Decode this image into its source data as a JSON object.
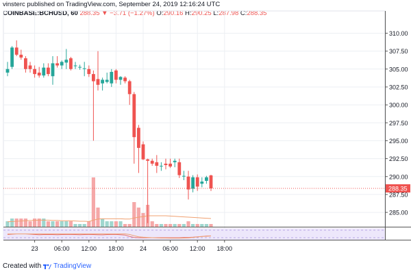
{
  "header": {
    "author": "vinsterc",
    "published_text": "published on TradingView.com, September 24, 2019 12:16:24 UTC",
    "symbol": "COINBASE:BCHUSD, 60",
    "last": "288.35",
    "change": "▼ −3.71 (−1.27%)",
    "ohlc": {
      "o_label": "O:",
      "o": "290.16",
      "h_label": "H:",
      "h": "290.25",
      "l_label": "L:",
      "l": "287.98",
      "c_label": "C:",
      "c": "288.35"
    }
  },
  "footer": {
    "created_with": "Created with",
    "brand": "TradingView"
  },
  "colors": {
    "up": "#26a69a",
    "down": "#ef5350",
    "vol_up": "#9fd6ce",
    "vol_down": "#f5a8a8",
    "price_line": "#ef5350",
    "osc_bg": "#ede7fb"
  },
  "chart_data": {
    "type": "candlestick",
    "interval": "60",
    "ylim": [
      283,
      311
    ],
    "y_ticks": [
      "310.00",
      "307.50",
      "305.00",
      "302.50",
      "300.00",
      "297.50",
      "295.00",
      "292.50",
      "290.00",
      "287.50",
      "285.00"
    ],
    "x_ticks": [
      {
        "label": "23",
        "bar": 6
      },
      {
        "label": "06:00",
        "bar": 12
      },
      {
        "label": "12:00",
        "bar": 18
      },
      {
        "label": "18:00",
        "bar": 24
      },
      {
        "label": "24",
        "bar": 30
      },
      {
        "label": "06:00",
        "bar": 36
      },
      {
        "label": "12:00",
        "bar": 42
      },
      {
        "label": "18:00",
        "bar": 48
      }
    ],
    "last_price_label": "288.35",
    "last_price": 288.35,
    "candles": [
      {
        "o": 304.5,
        "h": 306.0,
        "l": 304.0,
        "c": 305.0,
        "v": 2
      },
      {
        "o": 305.3,
        "h": 308.2,
        "l": 305.0,
        "c": 308.0,
        "v": 3
      },
      {
        "o": 308.0,
        "h": 309.0,
        "l": 306.8,
        "c": 307.0,
        "v": 3
      },
      {
        "o": 307.0,
        "h": 307.7,
        "l": 306.3,
        "c": 306.6,
        "v": 3
      },
      {
        "o": 306.5,
        "h": 306.8,
        "l": 304.5,
        "c": 305.0,
        "v": 3
      },
      {
        "o": 305.5,
        "h": 306.0,
        "l": 304.5,
        "c": 305.0,
        "v": 2
      },
      {
        "o": 305.0,
        "h": 305.5,
        "l": 303.8,
        "c": 304.3,
        "v": 3
      },
      {
        "o": 304.5,
        "h": 305.3,
        "l": 303.8,
        "c": 304.1,
        "v": 3
      },
      {
        "o": 304.1,
        "h": 305.8,
        "l": 303.8,
        "c": 305.2,
        "v": 3
      },
      {
        "o": 305.2,
        "h": 305.8,
        "l": 304.0,
        "c": 304.3,
        "v": 2
      },
      {
        "o": 304.0,
        "h": 306.8,
        "l": 302.8,
        "c": 305.8,
        "v": 2
      },
      {
        "o": 305.8,
        "h": 306.8,
        "l": 305.2,
        "c": 305.5,
        "v": 2
      },
      {
        "o": 305.5,
        "h": 306.2,
        "l": 305.0,
        "c": 306.0,
        "v": 2
      },
      {
        "o": 305.9,
        "h": 307.8,
        "l": 305.0,
        "c": 306.3,
        "v": 2
      },
      {
        "o": 306.5,
        "h": 306.7,
        "l": 304.8,
        "c": 305.0,
        "v": 2
      },
      {
        "o": 305.4,
        "h": 306.0,
        "l": 305.0,
        "c": 305.5,
        "v": 1
      },
      {
        "o": 305.2,
        "h": 305.6,
        "l": 304.9,
        "c": 305.3,
        "v": 1
      },
      {
        "o": 305.0,
        "h": 306.0,
        "l": 304.0,
        "c": 305.1,
        "v": 1
      },
      {
        "o": 305.0,
        "h": 305.5,
        "l": 303.9,
        "c": 304.3,
        "v": 2
      },
      {
        "o": 304.3,
        "h": 304.8,
        "l": 295.0,
        "c": 303.3,
        "v": 18
      },
      {
        "o": 303.6,
        "h": 307.5,
        "l": 302.0,
        "c": 302.8,
        "v": 7
      },
      {
        "o": 303.0,
        "h": 303.8,
        "l": 302.0,
        "c": 303.5,
        "v": 3
      },
      {
        "o": 303.2,
        "h": 304.5,
        "l": 303.0,
        "c": 303.5,
        "v": 2
      },
      {
        "o": 303.0,
        "h": 305.0,
        "l": 302.5,
        "c": 304.6,
        "v": 2
      },
      {
        "o": 304.8,
        "h": 305.0,
        "l": 303.0,
        "c": 303.5,
        "v": 2
      },
      {
        "o": 303.5,
        "h": 304.0,
        "l": 302.8,
        "c": 303.9,
        "v": 2
      },
      {
        "o": 303.8,
        "h": 304.0,
        "l": 303.0,
        "c": 303.3,
        "v": 1
      },
      {
        "o": 303.3,
        "h": 303.5,
        "l": 300.0,
        "c": 301.5,
        "v": 1
      },
      {
        "o": 301.5,
        "h": 301.8,
        "l": 291.8,
        "c": 295.5,
        "v": 9
      },
      {
        "o": 296.8,
        "h": 297.2,
        "l": 290.5,
        "c": 294.0,
        "v": 7
      },
      {
        "o": 294.5,
        "h": 294.9,
        "l": 292.3,
        "c": 292.4,
        "v": 5
      },
      {
        "o": 292.4,
        "h": 292.5,
        "l": 283.5,
        "c": 292.2,
        "v": 8
      },
      {
        "o": 292.2,
        "h": 292.5,
        "l": 291.5,
        "c": 291.8,
        "v": 2
      },
      {
        "o": 292.0,
        "h": 293.0,
        "l": 290.5,
        "c": 291.5,
        "v": 1
      },
      {
        "o": 291.5,
        "h": 292.0,
        "l": 290.8,
        "c": 291.5,
        "v": 1
      },
      {
        "o": 291.8,
        "h": 292.5,
        "l": 291.0,
        "c": 291.6,
        "v": 1
      },
      {
        "o": 291.8,
        "h": 292.5,
        "l": 291.2,
        "c": 291.4,
        "v": 1
      },
      {
        "o": 292.0,
        "h": 292.5,
        "l": 291.3,
        "c": 292.2,
        "v": 1
      },
      {
        "o": 292.0,
        "h": 292.5,
        "l": 289.8,
        "c": 290.2,
        "v": 1
      },
      {
        "o": 290.0,
        "h": 290.8,
        "l": 289.5,
        "c": 290.1,
        "v": 1
      },
      {
        "o": 290.0,
        "h": 290.8,
        "l": 286.8,
        "c": 288.2,
        "v": 2
      },
      {
        "o": 288.3,
        "h": 290.2,
        "l": 287.8,
        "c": 289.9,
        "v": 1
      },
      {
        "o": 289.9,
        "h": 290.3,
        "l": 288.0,
        "c": 288.6,
        "v": 1
      },
      {
        "o": 289.0,
        "h": 289.9,
        "l": 288.5,
        "c": 289.3,
        "v": 1
      },
      {
        "o": 289.4,
        "h": 290.1,
        "l": 289.0,
        "c": 289.9,
        "v": 1
      },
      {
        "o": 290.16,
        "h": 290.25,
        "l": 287.98,
        "c": 288.35,
        "v": 1
      }
    ],
    "volume_ma": [
      1.8,
      1.9,
      2.0,
      2.1,
      2.2,
      2.3,
      2.3,
      2.4,
      2.4,
      2.4,
      2.3,
      2.3,
      2.2,
      2.2,
      2.2,
      2.1,
      2.0,
      2.0,
      1.9,
      2.4,
      2.8,
      2.9,
      2.9,
      2.9,
      2.9,
      2.9,
      2.8,
      2.8,
      3.2,
      3.5,
      3.7,
      4.0,
      4.0,
      4.0,
      4.0,
      4.0,
      3.9,
      3.8,
      3.7,
      3.6,
      3.5,
      3.4,
      3.3,
      3.2,
      3.1,
      3.0
    ],
    "osc_line": [
      0.55,
      0.52,
      0.5,
      0.5,
      0.5,
      0.52,
      0.55,
      0.57,
      0.56,
      0.55,
      0.56,
      0.57,
      0.56,
      0.55,
      0.55,
      0.56,
      0.57,
      0.56,
      0.55,
      0.56,
      0.57,
      0.58,
      0.56,
      0.55,
      0.55,
      0.57,
      0.6,
      0.72,
      0.8,
      0.82,
      0.83,
      0.82,
      0.82,
      0.82,
      0.82,
      0.82,
      0.82,
      0.82,
      0.82,
      0.8,
      0.8,
      0.78,
      0.75,
      0.72,
      0.68,
      0.67
    ],
    "osc_line2": [
      0.5,
      0.5,
      0.5,
      0.5,
      0.5,
      0.5,
      0.5,
      0.5,
      0.5,
      0.5,
      0.5,
      0.5,
      0.5,
      0.5,
      0.5,
      0.5,
      0.5,
      0.5,
      0.5,
      0.5,
      0.5,
      0.5,
      0.5,
      0.5,
      0.5,
      0.5,
      0.5,
      0.55,
      0.65,
      0.75,
      0.78,
      0.8,
      0.82,
      0.84,
      0.85,
      0.85,
      0.86,
      0.86,
      0.86,
      0.85,
      0.84,
      0.8,
      0.76,
      0.72,
      0.7,
      0.68
    ]
  }
}
